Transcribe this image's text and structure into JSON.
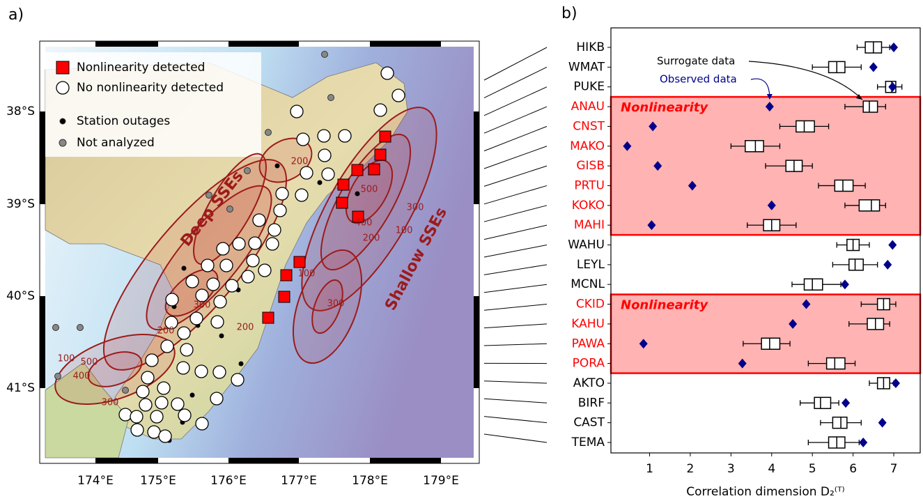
{
  "map": {
    "panel_label": "a)",
    "legend": [
      "Nonlinearity detected",
      "No nonlinearity detected",
      "Station outages",
      "Not analyzed"
    ],
    "lat_labels": [
      "38°S",
      "39°S",
      "40°S",
      "41°S"
    ],
    "lon_labels": [
      "174°E",
      "175°E",
      "176°E",
      "177°E",
      "178°E",
      "179°E"
    ],
    "region_labels": [
      "Deep SSEs",
      "Shallow SSEs"
    ],
    "contour_labels": [
      "100",
      "500",
      "400",
      "300",
      "200",
      "300",
      "200",
      "500",
      "400",
      "300",
      "200",
      "100",
      "100",
      "300",
      "200"
    ]
  },
  "chart_data": {
    "type": "box",
    "panel_label": "b)",
    "xlabel": "Correlation dimension D₂⁽ᵀ⁾",
    "categories": [
      "HIKB",
      "WMAT",
      "PUKE",
      "ANAU",
      "CNST",
      "MAKO",
      "GISB",
      "PRTU",
      "KOKO",
      "MAHI",
      "WAHU",
      "LEYL",
      "MCNL",
      "CKID",
      "KAHU",
      "PAWA",
      "PORA",
      "AKTO",
      "BIRF",
      "CAST",
      "TEMA"
    ],
    "nonlinear": [
      false,
      false,
      false,
      true,
      true,
      true,
      true,
      true,
      true,
      true,
      false,
      false,
      false,
      true,
      true,
      true,
      true,
      false,
      false,
      false,
      false
    ],
    "annotations": [
      "Nonlinearity",
      "Nonlinearity"
    ],
    "highlight_color": "#ff0000",
    "surrogate": {
      "name": "Surrogate data",
      "color": "#000000",
      "whislo": [
        6.1,
        5.0,
        6.6,
        5.8,
        4.2,
        3.0,
        3.85,
        5.15,
        5.8,
        3.4,
        5.6,
        5.5,
        4.5,
        6.2,
        5.9,
        3.3,
        4.9,
        6.4,
        4.7,
        5.2,
        4.9
      ],
      "q1": [
        6.3,
        5.4,
        6.8,
        6.25,
        4.6,
        3.35,
        4.35,
        5.55,
        6.15,
        3.8,
        5.85,
        5.9,
        4.8,
        6.6,
        6.35,
        3.75,
        5.35,
        6.6,
        5.05,
        5.5,
        5.4
      ],
      "median": [
        6.5,
        5.6,
        6.95,
        6.4,
        4.8,
        3.6,
        4.55,
        5.75,
        6.45,
        4.0,
        6.0,
        6.05,
        5.0,
        6.75,
        6.55,
        3.95,
        5.55,
        6.75,
        5.2,
        5.7,
        5.6
      ],
      "q3": [
        6.7,
        5.8,
        7.05,
        6.6,
        5.05,
        3.8,
        4.75,
        6.0,
        6.65,
        4.2,
        6.15,
        6.25,
        5.25,
        6.9,
        6.75,
        4.2,
        5.8,
        6.9,
        5.45,
        5.85,
        5.8
      ],
      "whishi": [
        6.9,
        6.2,
        7.2,
        6.8,
        5.4,
        4.2,
        5.0,
        6.3,
        6.8,
        4.6,
        6.4,
        6.6,
        5.7,
        7.05,
        6.9,
        4.45,
        6.05,
        7.0,
        5.65,
        6.2,
        6.15
      ]
    },
    "observed": {
      "name": "Observed data",
      "color": "#00008b",
      "values": [
        7.0,
        6.5,
        6.97,
        3.95,
        1.08,
        0.45,
        1.2,
        2.05,
        4.0,
        1.05,
        6.97,
        6.85,
        5.8,
        4.85,
        4.52,
        0.85,
        3.28,
        7.05,
        5.82,
        6.72,
        6.25
      ]
    },
    "xlim": [
      0.05,
      7.65
    ],
    "xticks": [
      1,
      2,
      3,
      4,
      5,
      6,
      7
    ]
  }
}
